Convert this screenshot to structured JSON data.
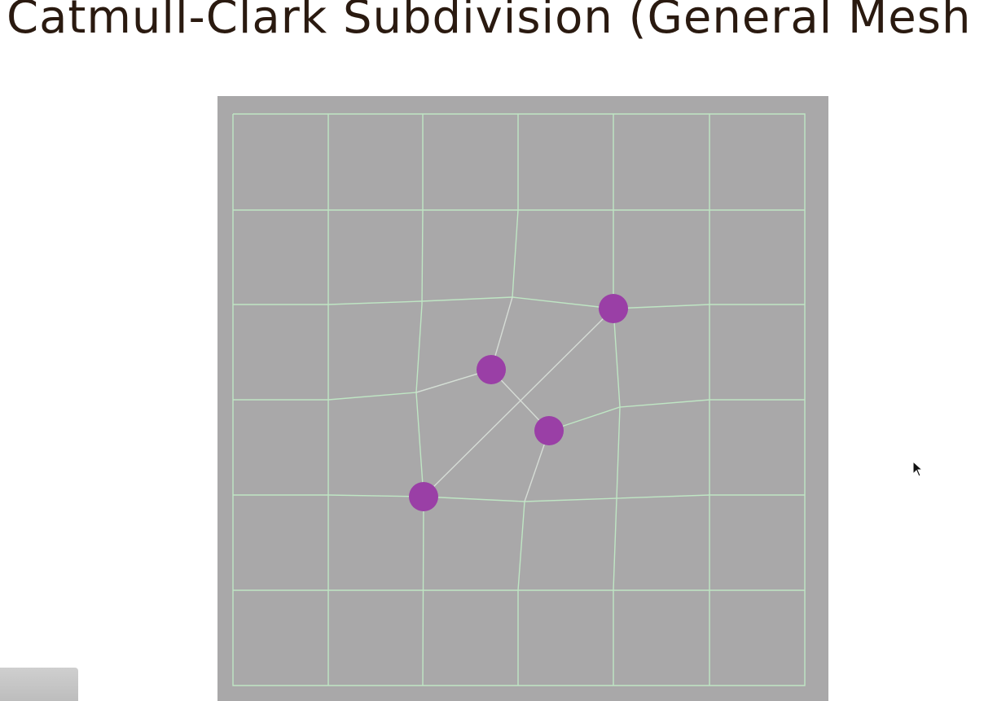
{
  "slide": {
    "title": "Catmull-Clark Subdivision (General Mesh"
  },
  "mesh": {
    "background_color": "#a9a8a9",
    "edge_color": "#bfe6c4",
    "interior_edge_color": "#d6dcd6",
    "vertex_color": "#9a3fa6",
    "highlighted_vertex_count": 4
  },
  "icons": {
    "cursor": "mouse-pointer-icon"
  }
}
